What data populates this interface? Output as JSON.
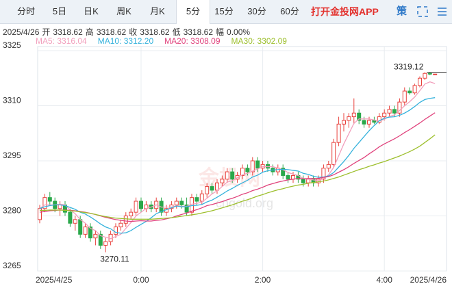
{
  "tabs": [
    {
      "label": "分时"
    },
    {
      "label": "5日"
    },
    {
      "label": "日K"
    },
    {
      "label": "周K"
    },
    {
      "label": "月K"
    },
    {
      "label": "5分",
      "active": true
    },
    {
      "label": "15分"
    },
    {
      "label": "30分"
    },
    {
      "label": "60分"
    }
  ],
  "promo": "打开金投网APP",
  "strategy": "策",
  "info": {
    "date": "2025/4/26",
    "items": [
      {
        "label": "开",
        "value": "3318.62"
      },
      {
        "label": "高",
        "value": "3318.62"
      },
      {
        "label": "收",
        "value": "3318.62"
      },
      {
        "label": "低",
        "value": "3318.62"
      },
      {
        "label": "幅",
        "value": "0.00%"
      }
    ]
  },
  "watermark": [
    "金投网",
    "cngold.org"
  ],
  "chart_data": {
    "type": "candlestick",
    "up_color": "#e8413c",
    "down_color": "#2aa84a",
    "grid": true,
    "ylim": [
      3265,
      3325
    ],
    "yticks": [
      3325,
      3310,
      3295,
      3280,
      3265
    ],
    "categories": [
      "2025/4/25",
      null,
      null,
      null,
      null,
      null,
      null,
      null,
      null,
      null,
      null,
      null,
      null,
      null,
      null,
      null,
      null,
      null,
      null,
      null,
      "0:00",
      null,
      null,
      null,
      null,
      null,
      null,
      null,
      null,
      null,
      null,
      null,
      null,
      null,
      null,
      null,
      null,
      null,
      null,
      null,
      null,
      null,
      null,
      null,
      "2:00",
      null,
      null,
      null,
      null,
      null,
      null,
      null,
      null,
      null,
      null,
      null,
      null,
      null,
      null,
      null,
      null,
      null,
      null,
      null,
      null,
      null,
      null,
      null,
      "4:00",
      null,
      null,
      null,
      null,
      null,
      null,
      null,
      null,
      null,
      "2025/4/26"
    ],
    "open": [
      3279,
      3282,
      3285,
      3284,
      3282,
      3283,
      3281,
      3278,
      3279,
      3275,
      3277,
      3274,
      3275,
      3272,
      3273,
      3275,
      3277,
      3278,
      3280,
      3281,
      3284,
      3282,
      3283,
      3282,
      3284,
      3281,
      3282,
      3283,
      3284,
      3283,
      3281,
      3285,
      3284,
      3286,
      3288,
      3287,
      3289,
      3290,
      3292,
      3290,
      3291,
      3293,
      3292,
      3295,
      3293,
      3294,
      3293,
      3292,
      3293,
      3291,
      3290,
      3291,
      3290,
      3289,
      3290,
      3289,
      3290,
      3293,
      3294,
      3300,
      3305,
      3306,
      3307,
      3308,
      3306,
      3305,
      3306,
      3305.5,
      3307,
      3308,
      3309,
      3308,
      3311,
      3314,
      3313.5,
      3315.5,
      3317.5,
      3318.8,
      3318.62
    ],
    "high": [
      3283,
      3286,
      3286.5,
      3285,
      3284,
      3284,
      3282,
      3280,
      3280,
      3278,
      3278,
      3276,
      3276,
      3274,
      3276,
      3278,
      3279,
      3281,
      3282,
      3285,
      3285,
      3284,
      3284,
      3285,
      3285,
      3283,
      3284,
      3285,
      3285,
      3285,
      3286,
      3286,
      3287,
      3289,
      3289,
      3290,
      3291,
      3293,
      3293,
      3292,
      3294,
      3294,
      3296,
      3296,
      3295,
      3295,
      3294,
      3294,
      3294,
      3292,
      3292,
      3292,
      3291,
      3291,
      3291,
      3291,
      3294,
      3295,
      3301,
      3307,
      3308,
      3308,
      3312,
      3309,
      3307,
      3307,
      3307,
      3308,
      3309,
      3310,
      3310,
      3312,
      3315,
      3315,
      3316,
      3318,
      3319.12,
      3319,
      3318.62
    ],
    "low": [
      3278,
      3281,
      3283,
      3281,
      3280,
      3280,
      3277,
      3276,
      3274,
      3274,
      3273,
      3272,
      3271,
      3270.11,
      3272,
      3274,
      3276,
      3277,
      3279,
      3280,
      3281,
      3281,
      3281,
      3281,
      3280,
      3280,
      3281,
      3282,
      3282,
      3280,
      3280,
      3283,
      3283,
      3285,
      3286,
      3286,
      3288,
      3289,
      3289,
      3289,
      3290,
      3291,
      3291,
      3292,
      3292,
      3292,
      3291,
      3291,
      3290,
      3289,
      3289,
      3289,
      3288,
      3288,
      3288,
      3288,
      3289,
      3292,
      3293,
      3299,
      3303,
      3304,
      3305,
      3305,
      3304,
      3304,
      3305,
      3305,
      3306,
      3307,
      3307,
      3307,
      3310,
      3313,
      3313,
      3315,
      3317,
      3318.3,
      3318.62
    ],
    "close": [
      3282,
      3285,
      3284,
      3282,
      3283,
      3281,
      3278,
      3279,
      3275,
      3277,
      3274,
      3275,
      3272,
      3273,
      3275,
      3277,
      3278,
      3280,
      3281,
      3284,
      3282,
      3283,
      3282,
      3284,
      3281,
      3282,
      3283,
      3284,
      3283,
      3281,
      3285,
      3284,
      3286,
      3288,
      3287,
      3289,
      3290,
      3292,
      3290,
      3291,
      3293,
      3292,
      3295,
      3293,
      3294,
      3293,
      3292,
      3293,
      3291,
      3290,
      3291,
      3290,
      3289,
      3290,
      3289,
      3290,
      3293,
      3294,
      3300,
      3305,
      3306,
      3307,
      3308,
      3306,
      3305,
      3306,
      3305.5,
      3307,
      3308,
      3309,
      3308,
      3311,
      3314,
      3313.5,
      3315.5,
      3317.5,
      3318.8,
      3318.62,
      3318.62
    ],
    "series": [
      {
        "name": "MA5: 3316.04",
        "color": "#f2a0bd",
        "values": [
          3282,
          3283,
          3283,
          3283,
          3283.2,
          3283,
          3281.6,
          3280.6,
          3279,
          3278,
          3276.6,
          3276,
          3274.6,
          3274.2,
          3273.8,
          3274.4,
          3275,
          3276.6,
          3278.2,
          3280,
          3281,
          3282,
          3282.4,
          3283,
          3282.4,
          3282.4,
          3282.4,
          3282.8,
          3282.6,
          3282.6,
          3283.2,
          3283.4,
          3283.8,
          3284.8,
          3286,
          3286.8,
          3288,
          3289.2,
          3289.6,
          3290.4,
          3291.2,
          3291.6,
          3292.2,
          3292.8,
          3293.4,
          3293.4,
          3293.4,
          3293,
          3292.6,
          3291.8,
          3291.4,
          3291,
          3290.2,
          3290,
          3289.8,
          3289.6,
          3290.2,
          3291.2,
          3293.2,
          3296.4,
          3299.6,
          3302.4,
          3305.2,
          3306.4,
          3306.4,
          3306.4,
          3306.1,
          3305.9,
          3306.3,
          3307.1,
          3307.5,
          3308.7,
          3310,
          3311.1,
          3312.4,
          3314.1,
          3315.9,
          3316.5,
          3316.04
        ]
      },
      {
        "name": "MA10: 3312.20",
        "color": "#35b2dc",
        "values": [
          3282,
          3282.5,
          3282.8,
          3283,
          3283,
          3282.8,
          3282.3,
          3281.8,
          3281,
          3280.5,
          3279.7,
          3278.8,
          3277.8,
          3277,
          3276.5,
          3275.5,
          3275.3,
          3275.4,
          3276,
          3276.9,
          3277.7,
          3278.5,
          3279.5,
          3280.6,
          3281.2,
          3281.7,
          3282.2,
          3282.7,
          3282.5,
          3282.5,
          3282.8,
          3282.9,
          3283.1,
          3283.8,
          3284.3,
          3285.1,
          3285.9,
          3286.8,
          3287.5,
          3288.3,
          3289,
          3289.7,
          3290.6,
          3291.1,
          3291.9,
          3292.3,
          3292.5,
          3292.6,
          3292.7,
          3292.6,
          3292.4,
          3292.2,
          3291.6,
          3291.3,
          3290.8,
          3290.5,
          3290.6,
          3290.9,
          3291.8,
          3293.3,
          3294.8,
          3296.5,
          3298.4,
          3300,
          3301.6,
          3303.2,
          3304.6,
          3305.9,
          3306.6,
          3306.9,
          3307,
          3307.4,
          3308,
          3308.8,
          3309.8,
          3310.9,
          3311.7,
          3312,
          3312.2
        ]
      },
      {
        "name": "MA20: 3308.09",
        "color": "#e0427c",
        "values": [
          3281,
          3281.2,
          3281.4,
          3281.5,
          3281.6,
          3281.6,
          3281.5,
          3281.4,
          3281.2,
          3281,
          3280.7,
          3280.4,
          3280,
          3279.6,
          3279.3,
          3279,
          3278.8,
          3278.6,
          3278.5,
          3278.6,
          3278.7,
          3278.6,
          3278.6,
          3278.8,
          3278.9,
          3279.2,
          3279.5,
          3280,
          3280.4,
          3280.8,
          3281.3,
          3281.7,
          3282.2,
          3282.8,
          3283.1,
          3283.5,
          3283.9,
          3284.4,
          3284.8,
          3285.3,
          3285.9,
          3286.3,
          3286.9,
          3287.3,
          3287.8,
          3288.4,
          3288.8,
          3289.2,
          3289.5,
          3289.8,
          3290,
          3290.2,
          3290.1,
          3290.2,
          3290.2,
          3290.2,
          3290.5,
          3290.7,
          3291.2,
          3291.9,
          3292.6,
          3293.4,
          3294.3,
          3295.1,
          3295.9,
          3296.9,
          3297.8,
          3298.8,
          3299.6,
          3300.3,
          3301,
          3301.8,
          3302.7,
          3303.5,
          3304.4,
          3305.3,
          3306.3,
          3307.2,
          3308.09
        ]
      },
      {
        "name": "MA30: 3302.09",
        "color": "#9dbf2c",
        "values": [
          3281.5,
          3281.5,
          3281.6,
          3281.6,
          3281.6,
          3281.5,
          3281.4,
          3281.3,
          3281.1,
          3280.9,
          3280.7,
          3280.4,
          3280.1,
          3279.8,
          3279.6,
          3279.4,
          3279.3,
          3279.2,
          3279.1,
          3279.1,
          3279.1,
          3279.1,
          3279.1,
          3279.2,
          3279.3,
          3279.4,
          3279.5,
          3279.7,
          3279.9,
          3280.1,
          3280.3,
          3280.5,
          3280.8,
          3281.1,
          3281.4,
          3281.8,
          3282.2,
          3282.6,
          3283,
          3283.5,
          3284,
          3284.4,
          3284.9,
          3285.4,
          3285.8,
          3286.3,
          3286.7,
          3287.1,
          3287.4,
          3287.8,
          3288.1,
          3288.4,
          3288.6,
          3288.9,
          3289.1,
          3289.3,
          3289.5,
          3289.8,
          3290.2,
          3290.6,
          3291.1,
          3291.6,
          3292.1,
          3292.6,
          3293,
          3293.5,
          3293.9,
          3294.4,
          3294.8,
          3295.3,
          3295.8,
          3296.3,
          3296.9,
          3297.5,
          3298.2,
          3299,
          3300,
          3301,
          3302.09
        ]
      }
    ]
  }
}
